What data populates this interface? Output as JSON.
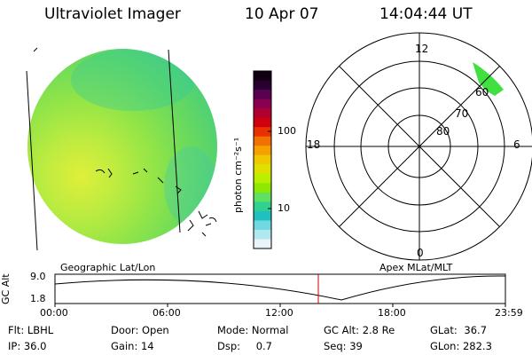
{
  "header": {
    "instrument": "Ultraviolet Imager",
    "date": "10 Apr 07",
    "time": "14:04:44 UT"
  },
  "colorbar": {
    "unit_label": "photon cm⁻²s⁻¹",
    "ticks": [
      "100",
      "10"
    ],
    "colors_top_to_bottom": [
      "#100010",
      "#2a0030",
      "#5a0050",
      "#8a0050",
      "#b00030",
      "#d00010",
      "#e83000",
      "#f07000",
      "#f5a000",
      "#f0c800",
      "#e0e000",
      "#b8f000",
      "#90e800",
      "#60e060",
      "#30d090",
      "#20c0c0",
      "#70d8e0",
      "#b0e8f0",
      "#e8f4f8"
    ]
  },
  "earth_image": {
    "map_label": "Geographic Lat/Lon",
    "dominant_colors": [
      "#a8e830",
      "#50d060",
      "#e8f020"
    ]
  },
  "polar_plot": {
    "map_label": "Apex MLat/MLT",
    "mlt_labels": {
      "top": "12",
      "bottom": "0",
      "left": "18",
      "right": "6"
    },
    "lat_labels": [
      "60",
      "70",
      "80"
    ],
    "highlight_color": "#40e040"
  },
  "timeline": {
    "axis_title": "GC Alt",
    "y_ticks": [
      "9.0",
      "1.8"
    ],
    "x_ticks": [
      "00:00",
      "06:00",
      "12:00",
      "18:00",
      "23:59"
    ],
    "current_time_marker_color": "#cc0000"
  },
  "status": {
    "row1": [
      {
        "key": "Flt:",
        "val": "LBHL"
      },
      {
        "key": "Door:",
        "val": "Open"
      },
      {
        "key": "Mode:",
        "val": "Normal"
      },
      {
        "key": "GC Alt:",
        "val": "2.8 Re"
      },
      {
        "key": "GLat:",
        "val": "36.7"
      }
    ],
    "row2": [
      {
        "key": "IP:",
        "val": "36.0"
      },
      {
        "key": "Gain:",
        "val": "14"
      },
      {
        "key": "Dsp:",
        "val": "0.7"
      },
      {
        "key": "Seq:",
        "val": "39"
      },
      {
        "key": "GLon:",
        "val": "282.3"
      }
    ]
  }
}
